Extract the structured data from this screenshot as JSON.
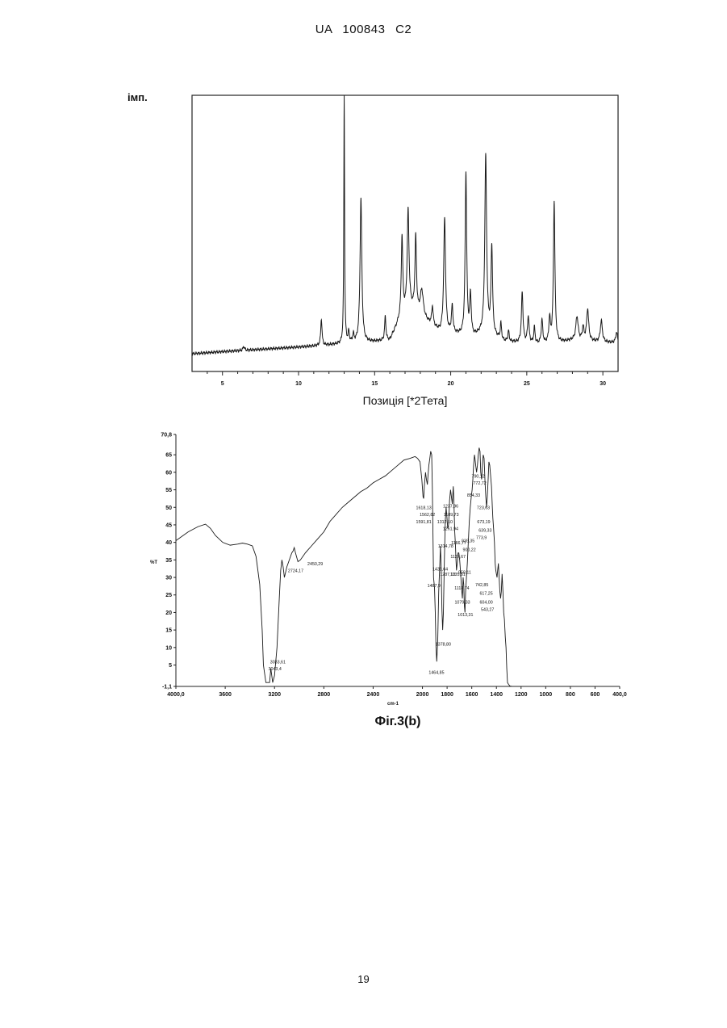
{
  "header": {
    "text": "UA   100843   C2"
  },
  "page_number": "19",
  "figure_caption": "Фіг.3(b)",
  "chart_data": [
    {
      "type": "line",
      "title": "",
      "ylabel": "імп.",
      "xlabel": "Позиція [*2Тета]",
      "xlim": [
        3,
        31
      ],
      "ylim": [
        0,
        100
      ],
      "x_ticks": [
        5,
        10,
        15,
        20,
        25,
        30
      ],
      "y_ticks": [],
      "baseline": [
        [
          3,
          3
        ],
        [
          5,
          3.8
        ],
        [
          10,
          5.5
        ],
        [
          12.5,
          6.5
        ],
        [
          14,
          7
        ],
        [
          16,
          8
        ],
        [
          16.6,
          15
        ],
        [
          17.3,
          20
        ],
        [
          18.2,
          16
        ],
        [
          19.3,
          11
        ],
        [
          20.5,
          10
        ],
        [
          21.4,
          9
        ],
        [
          22.3,
          11
        ],
        [
          23.5,
          7.5
        ],
        [
          26,
          6.5
        ],
        [
          27,
          7
        ],
        [
          28,
          8
        ],
        [
          31,
          7
        ]
      ],
      "peaks": [
        {
          "x": 6.4,
          "h": 1.5,
          "w": 0.06
        },
        {
          "x": 11.5,
          "h": 10,
          "w": 0.05
        },
        {
          "x": 13.0,
          "h": 93,
          "w": 0.03
        },
        {
          "x": 13.3,
          "h": 4,
          "w": 0.05
        },
        {
          "x": 13.6,
          "h": 3,
          "w": 0.05
        },
        {
          "x": 14.1,
          "h": 54,
          "w": 0.07
        },
        {
          "x": 15.7,
          "h": 9,
          "w": 0.05
        },
        {
          "x": 16.8,
          "h": 30,
          "w": 0.06
        },
        {
          "x": 17.2,
          "h": 37,
          "w": 0.07
        },
        {
          "x": 17.7,
          "h": 28,
          "w": 0.06
        },
        {
          "x": 18.1,
          "h": 10,
          "w": 0.12
        },
        {
          "x": 18.8,
          "h": 7,
          "w": 0.06
        },
        {
          "x": 19.6,
          "h": 43,
          "w": 0.07
        },
        {
          "x": 20.1,
          "h": 10,
          "w": 0.06
        },
        {
          "x": 21.0,
          "h": 61,
          "w": 0.06
        },
        {
          "x": 21.3,
          "h": 15,
          "w": 0.06
        },
        {
          "x": 22.3,
          "h": 66,
          "w": 0.07
        },
        {
          "x": 22.7,
          "h": 33,
          "w": 0.06
        },
        {
          "x": 23.3,
          "h": 6,
          "w": 0.05
        },
        {
          "x": 23.8,
          "h": 4,
          "w": 0.05
        },
        {
          "x": 24.7,
          "h": 19,
          "w": 0.06
        },
        {
          "x": 25.1,
          "h": 10,
          "w": 0.06
        },
        {
          "x": 25.5,
          "h": 6,
          "w": 0.05
        },
        {
          "x": 26.0,
          "h": 9,
          "w": 0.06
        },
        {
          "x": 26.5,
          "h": 9,
          "w": 0.06
        },
        {
          "x": 26.8,
          "h": 53,
          "w": 0.06
        },
        {
          "x": 28.3,
          "h": 9,
          "w": 0.09
        },
        {
          "x": 28.7,
          "h": 5,
          "w": 0.06
        },
        {
          "x": 29.0,
          "h": 12,
          "w": 0.08
        },
        {
          "x": 29.9,
          "h": 8,
          "w": 0.08
        },
        {
          "x": 30.9,
          "h": 4,
          "w": 0.07
        }
      ]
    },
    {
      "type": "line",
      "title": "",
      "ylabel": "%T",
      "xlabel": "cm-1",
      "xlim": [
        4000.0,
        400.0
      ],
      "ylim": [
        -1.1,
        70.8
      ],
      "x_ticks": [
        {
          "v": 4000,
          "l": "4000,0"
        },
        {
          "v": 3600,
          "l": "3600"
        },
        {
          "v": 3200,
          "l": "3200"
        },
        {
          "v": 2800,
          "l": "2800"
        },
        {
          "v": 2400,
          "l": "2400"
        },
        {
          "v": 2000,
          "l": "2000"
        },
        {
          "v": 1800,
          "l": "1800"
        },
        {
          "v": 1600,
          "l": "1600"
        },
        {
          "v": 1400,
          "l": "1400"
        },
        {
          "v": 1200,
          "l": "1200"
        },
        {
          "v": 1000,
          "l": "1000"
        },
        {
          "v": 800,
          "l": "800"
        },
        {
          "v": 600,
          "l": "600"
        },
        {
          "v": 400,
          "l": "400,0"
        }
      ],
      "y_ticks": [
        {
          "v": -1.1,
          "l": "-1,1"
        },
        {
          "v": 5,
          "l": "5"
        },
        {
          "v": 10,
          "l": "10"
        },
        {
          "v": 15,
          "l": "15"
        },
        {
          "v": 20,
          "l": "20"
        },
        {
          "v": 25,
          "l": "25"
        },
        {
          "v": 30,
          "l": "30"
        },
        {
          "v": 35,
          "l": "35"
        },
        {
          "v": 40,
          "l": "40"
        },
        {
          "v": 45,
          "l": "45"
        },
        {
          "v": 50,
          "l": "50"
        },
        {
          "v": 55,
          "l": "55"
        },
        {
          "v": 60,
          "l": "60"
        },
        {
          "v": 65,
          "l": "65"
        },
        {
          "v": 70.8,
          "l": "70,8"
        }
      ],
      "points": [
        [
          4000,
          40.5
        ],
        [
          3900,
          43
        ],
        [
          3820,
          44.5
        ],
        [
          3760,
          45.2
        ],
        [
          3720,
          44
        ],
        [
          3680,
          42
        ],
        [
          3620,
          40
        ],
        [
          3560,
          39.2
        ],
        [
          3500,
          39.5
        ],
        [
          3460,
          39.8
        ],
        [
          3420,
          39.5
        ],
        [
          3380,
          39
        ],
        [
          3350,
          36
        ],
        [
          3320,
          28
        ],
        [
          3300,
          15
        ],
        [
          3290,
          5
        ],
        [
          3270,
          0
        ],
        [
          3240,
          0
        ],
        [
          3230,
          4
        ],
        [
          3215,
          0
        ],
        [
          3200,
          2
        ],
        [
          3180,
          10
        ],
        [
          3160,
          25
        ],
        [
          3150,
          32
        ],
        [
          3140,
          35
        ],
        [
          3130,
          33
        ],
        [
          3120,
          30
        ],
        [
          3100,
          33
        ],
        [
          3080,
          35
        ],
        [
          3070,
          36
        ],
        [
          3060,
          37
        ],
        [
          3050,
          37.5
        ],
        [
          3040,
          38.5
        ],
        [
          3030,
          37
        ],
        [
          3010,
          34.5
        ],
        [
          2990,
          35
        ],
        [
          2970,
          36
        ],
        [
          2950,
          37
        ],
        [
          2900,
          39
        ],
        [
          2850,
          41
        ],
        [
          2800,
          43
        ],
        [
          2750,
          46
        ],
        [
          2700,
          48
        ],
        [
          2650,
          50
        ],
        [
          2600,
          51.5
        ],
        [
          2550,
          53
        ],
        [
          2500,
          54.5
        ],
        [
          2450,
          55.5
        ],
        [
          2400,
          57
        ],
        [
          2350,
          58
        ],
        [
          2300,
          59
        ],
        [
          2250,
          60.5
        ],
        [
          2200,
          62
        ],
        [
          2150,
          63.5
        ],
        [
          2100,
          64
        ],
        [
          2060,
          64.5
        ],
        [
          2040,
          64
        ],
        [
          2020,
          63
        ],
        [
          2005,
          58
        ],
        [
          1995,
          53
        ],
        [
          1990,
          52.5
        ],
        [
          1985,
          56
        ],
        [
          1975,
          60
        ],
        [
          1968,
          58
        ],
        [
          1960,
          56.5
        ],
        [
          1955,
          59
        ],
        [
          1948,
          62
        ],
        [
          1940,
          64
        ],
        [
          1933,
          66
        ],
        [
          1925,
          65
        ],
        [
          1920,
          56
        ],
        [
          1910,
          30
        ],
        [
          1902,
          27
        ],
        [
          1896,
          20
        ],
        [
          1890,
          10
        ],
        [
          1884,
          6
        ],
        [
          1876,
          12
        ],
        [
          1868,
          26
        ],
        [
          1860,
          33
        ],
        [
          1854,
          39
        ],
        [
          1849,
          34
        ],
        [
          1842,
          21
        ],
        [
          1836,
          15
        ],
        [
          1830,
          20
        ],
        [
          1822,
          35
        ],
        [
          1815,
          46
        ],
        [
          1808,
          50
        ],
        [
          1801,
          47
        ],
        [
          1795,
          44
        ],
        [
          1788,
          45
        ],
        [
          1780,
          52
        ],
        [
          1772,
          55
        ],
        [
          1765,
          53
        ],
        [
          1758,
          51
        ],
        [
          1750,
          56
        ],
        [
          1745,
          52
        ],
        [
          1738,
          43
        ],
        [
          1732,
          39
        ],
        [
          1728,
          35
        ],
        [
          1724,
          32
        ],
        [
          1718,
          34
        ],
        [
          1711,
          37
        ],
        [
          1705,
          37
        ],
        [
          1698,
          35
        ],
        [
          1690,
          31
        ],
        [
          1683,
          27
        ],
        [
          1676,
          24
        ],
        [
          1670,
          30
        ],
        [
          1665,
          28
        ],
        [
          1660,
          22
        ],
        [
          1655,
          20
        ],
        [
          1650,
          26
        ],
        [
          1643,
          30
        ],
        [
          1636,
          34
        ],
        [
          1628,
          40
        ],
        [
          1620,
          46
        ],
        [
          1612,
          50
        ],
        [
          1604,
          53
        ],
        [
          1597,
          55
        ],
        [
          1591,
          58
        ],
        [
          1585,
          62
        ],
        [
          1578,
          65
        ],
        [
          1574,
          64
        ],
        [
          1568,
          62
        ],
        [
          1561,
          60
        ],
        [
          1554,
          62
        ],
        [
          1547,
          65
        ],
        [
          1540,
          67
        ],
        [
          1533,
          66
        ],
        [
          1527,
          60
        ],
        [
          1520,
          58
        ],
        [
          1514,
          62
        ],
        [
          1507,
          65
        ],
        [
          1500,
          64
        ],
        [
          1492,
          57
        ],
        [
          1486,
          53
        ],
        [
          1480,
          50
        ],
        [
          1474,
          53
        ],
        [
          1467,
          58
        ],
        [
          1461,
          63
        ],
        [
          1454,
          62
        ],
        [
          1447,
          59
        ],
        [
          1440,
          56
        ],
        [
          1433,
          50
        ],
        [
          1429,
          47
        ],
        [
          1423,
          44
        ],
        [
          1416,
          40
        ],
        [
          1410,
          34
        ],
        [
          1405,
          32
        ],
        [
          1400,
          31
        ],
        [
          1395,
          30
        ],
        [
          1390,
          32
        ],
        [
          1384,
          34
        ],
        [
          1378,
          30
        ],
        [
          1372,
          26
        ],
        [
          1366,
          24
        ],
        [
          1360,
          26
        ],
        [
          1354,
          31
        ],
        [
          1347,
          26
        ],
        [
          1341,
          20
        ],
        [
          1335,
          18
        ],
        [
          1328,
          13
        ],
        [
          1322,
          10
        ],
        [
          1316,
          4
        ],
        [
          1310,
          0
        ],
        [
          1302,
          -0.5
        ],
        [
          1290,
          -1
        ],
        [
          1275,
          -1.1
        ]
      ],
      "labels": [
        {
          "x": 3173,
          "y": 5.5,
          "t": "3033,61"
        },
        {
          "x": 3197,
          "y": 3.5,
          "t": "3043,4"
        },
        {
          "x": 3028,
          "y": 31.5,
          "t": "2724,17"
        },
        {
          "x": 2870,
          "y": 33.5,
          "t": "2450,29"
        },
        {
          "x": 1990,
          "y": 49.5,
          "t": "1618,13"
        },
        {
          "x": 1960,
          "y": 47.5,
          "t": "1562,82"
        },
        {
          "x": 1990,
          "y": 45.5,
          "t": "1591,81"
        },
        {
          "x": 1907,
          "y": 27.2,
          "t": "1487,9"
        },
        {
          "x": 1886,
          "y": 2.5,
          "t": "1464,85"
        },
        {
          "x": 1856,
          "y": 32,
          "t": "1431,64"
        },
        {
          "x": 1831,
          "y": 10.5,
          "t": "1378,80"
        },
        {
          "x": 1818,
          "y": 45.5,
          "t": "1312,10"
        },
        {
          "x": 1812,
          "y": 38.5,
          "t": "1314,78"
        },
        {
          "x": 1795,
          "y": 30.5,
          "t": "1287,13"
        },
        {
          "x": 1771,
          "y": 50,
          "t": "1237,96"
        },
        {
          "x": 1772,
          "y": 43.5,
          "t": "1261,94"
        },
        {
          "x": 1767,
          "y": 47.5,
          "t": "1189,73"
        },
        {
          "x": 1711,
          "y": 35.5,
          "t": "1127,67"
        },
        {
          "x": 1706,
          "y": 39.5,
          "t": "1166,77"
        },
        {
          "x": 1713,
          "y": 30.5,
          "t": "1135,61"
        },
        {
          "x": 1680,
          "y": 26.5,
          "t": "1117,74"
        },
        {
          "x": 1676,
          "y": 22.5,
          "t": "1079,33"
        },
        {
          "x": 1651,
          "y": 19,
          "t": "1013,31"
        },
        {
          "x": 1657,
          "y": 31,
          "t": "958,11"
        },
        {
          "x": 1630,
          "y": 40,
          "t": "939,35"
        },
        {
          "x": 1620,
          "y": 37.5,
          "t": "900,22"
        },
        {
          "x": 1585,
          "y": 53,
          "t": "854,33"
        },
        {
          "x": 1548,
          "y": 58.5,
          "t": "790,12"
        },
        {
          "x": 1535,
          "y": 56.5,
          "t": "772,72"
        },
        {
          "x": 1522,
          "y": 41,
          "t": "773,9"
        },
        {
          "x": 1518,
          "y": 27.5,
          "t": "742,85"
        },
        {
          "x": 1506,
          "y": 49.5,
          "t": "723,63"
        },
        {
          "x": 1503,
          "y": 45.5,
          "t": "673,19"
        },
        {
          "x": 1491,
          "y": 43,
          "t": "639,33"
        },
        {
          "x": 1483,
          "y": 25,
          "t": "617,25"
        },
        {
          "x": 1483,
          "y": 22.5,
          "t": "604,00"
        },
        {
          "x": 1472,
          "y": 20.5,
          "t": "543,27"
        }
      ]
    }
  ]
}
